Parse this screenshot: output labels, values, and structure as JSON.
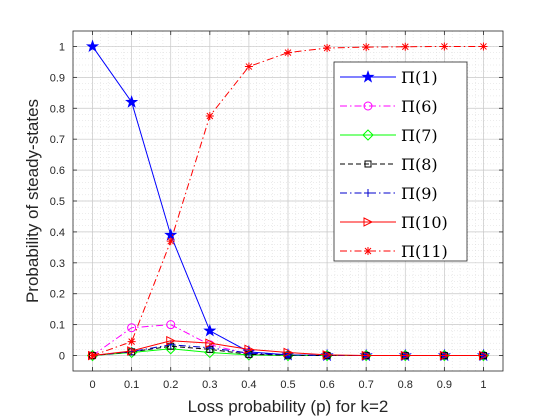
{
  "chart_data": {
    "type": "line",
    "xlabel": "Loss probability (p) for k=2",
    "ylabel": "Probability of steady-states",
    "xlim": [
      -0.05,
      1.05
    ],
    "ylim": [
      -0.05,
      1.05
    ],
    "x": [
      0,
      0.1,
      0.2,
      0.3,
      0.4,
      0.5,
      0.6,
      0.7,
      0.8,
      0.9,
      1
    ],
    "xticks": [
      "0",
      "0.1",
      "0.2",
      "0.3",
      "0.4",
      "0.5",
      "0.6",
      "0.7",
      "0.8",
      "0.9",
      "1"
    ],
    "yticks": [
      "0",
      "0.1",
      "0.2",
      "0.3",
      "0.4",
      "0.5",
      "0.6",
      "0.7",
      "0.8",
      "0.9",
      "1"
    ],
    "grid": true,
    "minor_grid": true,
    "legend_position": "top-right",
    "series": [
      {
        "name": "Π(1)",
        "color": "#0000ff",
        "dash": "solid",
        "marker": "star",
        "values": [
          1.0,
          0.82,
          0.39,
          0.08,
          0.012,
          0.002,
          0.0,
          0.0,
          0.0,
          0.0,
          0.0
        ]
      },
      {
        "name": "Π(6)",
        "color": "#ff00ff",
        "dash": "dashdot",
        "marker": "circle",
        "values": [
          0.0,
          0.09,
          0.1,
          0.035,
          0.005,
          0.001,
          0.0,
          0.0,
          0.0,
          0.0,
          0.0
        ]
      },
      {
        "name": "Π(7)",
        "color": "#00ff00",
        "dash": "solid",
        "marker": "diamond",
        "values": [
          0.0,
          0.01,
          0.022,
          0.01,
          0.002,
          0.0,
          0.0,
          0.0,
          0.0,
          0.0,
          0.0
        ]
      },
      {
        "name": "Π(8)",
        "color": "#000000",
        "dash": "dashed",
        "marker": "square",
        "values": [
          0.0,
          0.012,
          0.03,
          0.02,
          0.004,
          0.001,
          0.0,
          0.0,
          0.0,
          0.0,
          0.0
        ]
      },
      {
        "name": "Π(9)",
        "color": "#0000cc",
        "dash": "dashdot",
        "marker": "plus",
        "values": [
          0.0,
          0.013,
          0.035,
          0.025,
          0.008,
          0.002,
          0.0,
          0.0,
          0.0,
          0.0,
          0.0
        ]
      },
      {
        "name": "Π(10)",
        "color": "#ff0000",
        "dash": "solid",
        "marker": "triangle-right",
        "values": [
          0.0,
          0.015,
          0.048,
          0.04,
          0.02,
          0.01,
          0.002,
          0.0,
          0.0,
          0.0,
          0.0
        ]
      },
      {
        "name": "Π(11)",
        "color": "#ff0000",
        "dash": "dashdot",
        "marker": "asterisk",
        "values": [
          0.0,
          0.045,
          0.37,
          0.775,
          0.935,
          0.98,
          0.995,
          0.998,
          0.999,
          1.0,
          1.0
        ]
      }
    ]
  }
}
